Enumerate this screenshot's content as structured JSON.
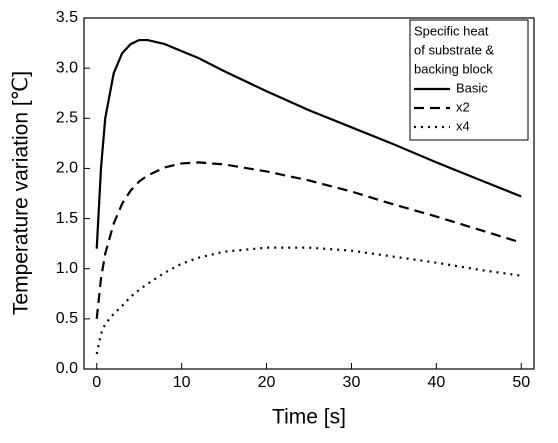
{
  "chart_data": {
    "type": "line",
    "x_label": "Time [s]",
    "y_label": "Temperature variation [℃]",
    "legend_title": [
      "Specific heat",
      "of substrate &",
      "backing block"
    ],
    "legend_position": "upper right",
    "x": [
      0,
      0.5,
      1,
      2,
      3,
      4,
      5,
      6,
      8,
      10,
      12,
      15,
      20,
      25,
      30,
      35,
      40,
      45,
      50
    ],
    "series": [
      {
        "name": "Basic",
        "color": "#000000",
        "dash": "solid",
        "values": [
          1.2,
          2.0,
          2.5,
          2.95,
          3.15,
          3.24,
          3.28,
          3.28,
          3.24,
          3.17,
          3.1,
          2.97,
          2.77,
          2.58,
          2.41,
          2.24,
          2.06,
          1.89,
          1.72
        ]
      },
      {
        "name": "x2",
        "color": "#000000",
        "dash": "dashed",
        "values": [
          0.5,
          0.9,
          1.15,
          1.45,
          1.65,
          1.78,
          1.87,
          1.93,
          2.01,
          2.05,
          2.06,
          2.04,
          1.97,
          1.88,
          1.77,
          1.64,
          1.52,
          1.39,
          1.26
        ]
      },
      {
        "name": "x4",
        "color": "#000000",
        "dash": "dotted",
        "values": [
          0.15,
          0.35,
          0.45,
          0.55,
          0.63,
          0.72,
          0.79,
          0.85,
          0.96,
          1.05,
          1.11,
          1.17,
          1.21,
          1.21,
          1.18,
          1.12,
          1.06,
          0.99,
          0.93
        ]
      }
    ],
    "xlim": [
      -1.5,
      51.5
    ],
    "xticks": [
      0,
      10,
      20,
      30,
      40,
      50
    ],
    "ylim": [
      0,
      3.5
    ],
    "yticks": [
      {
        "value": 0,
        "label": "0.0"
      },
      0.5,
      {
        "value": 1,
        "label": "1.0"
      },
      1.5,
      {
        "value": 2,
        "label": "2.0"
      },
      2.5,
      {
        "value": 3,
        "label": "3.0"
      },
      3.5
    ]
  }
}
